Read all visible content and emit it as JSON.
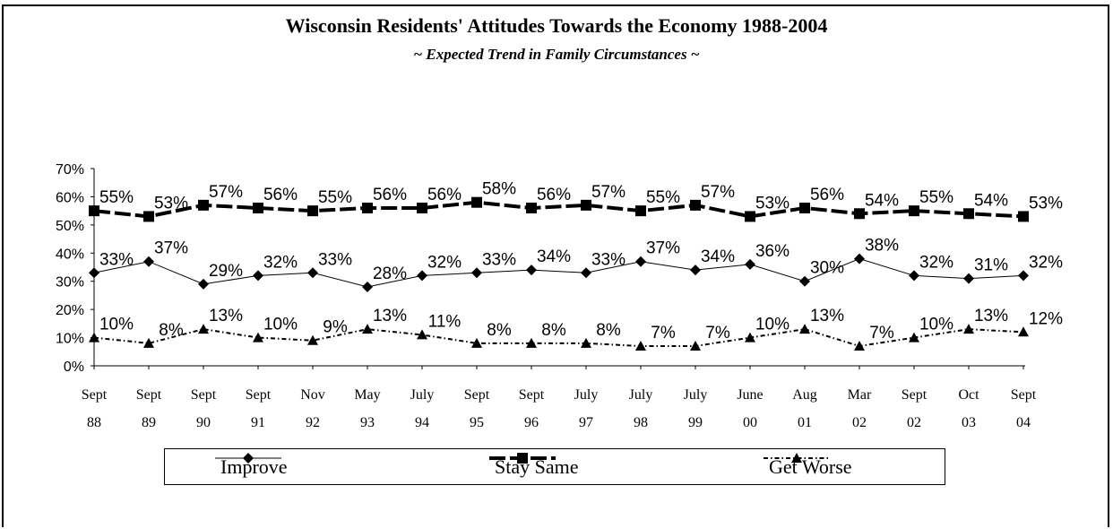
{
  "chart_data": {
    "type": "line",
    "title": "Wisconsin Residents' Attitudes Towards the Economy 1988-2004",
    "subtitle": "~ Expected Trend in Family Circumstances ~",
    "categories": [
      [
        "Sept",
        "88"
      ],
      [
        "Sept",
        "89"
      ],
      [
        "Sept",
        "90"
      ],
      [
        "Sept",
        "91"
      ],
      [
        "Nov",
        "92"
      ],
      [
        "May",
        "93"
      ],
      [
        "July",
        "94"
      ],
      [
        "Sept",
        "95"
      ],
      [
        "Sept",
        "96"
      ],
      [
        "July",
        "97"
      ],
      [
        "July",
        "98"
      ],
      [
        "July",
        "99"
      ],
      [
        "June",
        "00"
      ],
      [
        "Aug",
        "01"
      ],
      [
        "Mar",
        "02"
      ],
      [
        "Sept",
        "02"
      ],
      [
        "Oct",
        "03"
      ],
      [
        "Sept",
        "04"
      ]
    ],
    "y_ticks": [
      "0%",
      "10%",
      "20%",
      "30%",
      "40%",
      "50%",
      "60%",
      "70%"
    ],
    "ylim": [
      0,
      70
    ],
    "grid": false,
    "legend_position": "bottom",
    "series": [
      {
        "name": "Improve",
        "marker": "diamond",
        "line": "thin-solid",
        "values": [
          33,
          37,
          29,
          32,
          33,
          28,
          32,
          33,
          34,
          33,
          37,
          34,
          36,
          30,
          38,
          32,
          31,
          32
        ],
        "labels": [
          "33%",
          "37%",
          "29%",
          "32%",
          "33%",
          "28%",
          "32%",
          "33%",
          "34%",
          "33%",
          "37%",
          "34%",
          "36%",
          "30%",
          "38%",
          "32%",
          "31%",
          "32%"
        ]
      },
      {
        "name": "Stay Same",
        "marker": "square",
        "line": "thick-dash",
        "values": [
          55,
          53,
          57,
          56,
          55,
          56,
          56,
          58,
          56,
          57,
          55,
          57,
          53,
          56,
          54,
          55,
          54,
          53
        ],
        "labels": [
          "55%",
          "53%",
          "57%",
          "56%",
          "55%",
          "56%",
          "56%",
          "58%",
          "56%",
          "57%",
          "55%",
          "57%",
          "53%",
          "56%",
          "54%",
          "55%",
          "54%",
          "53%"
        ]
      },
      {
        "name": "Get Worse",
        "marker": "triangle",
        "line": "dotted",
        "values": [
          10,
          8,
          13,
          10,
          9,
          13,
          11,
          8,
          8,
          8,
          7,
          7,
          10,
          13,
          7,
          10,
          13,
          12
        ],
        "labels": [
          "10%",
          "8%",
          "13%",
          "10%",
          "9%",
          "13%",
          "11%",
          "8%",
          "8%",
          "8%",
          "7%",
          "7%",
          "10%",
          "13%",
          "7%",
          "10%",
          "13%",
          "12%"
        ]
      }
    ]
  }
}
